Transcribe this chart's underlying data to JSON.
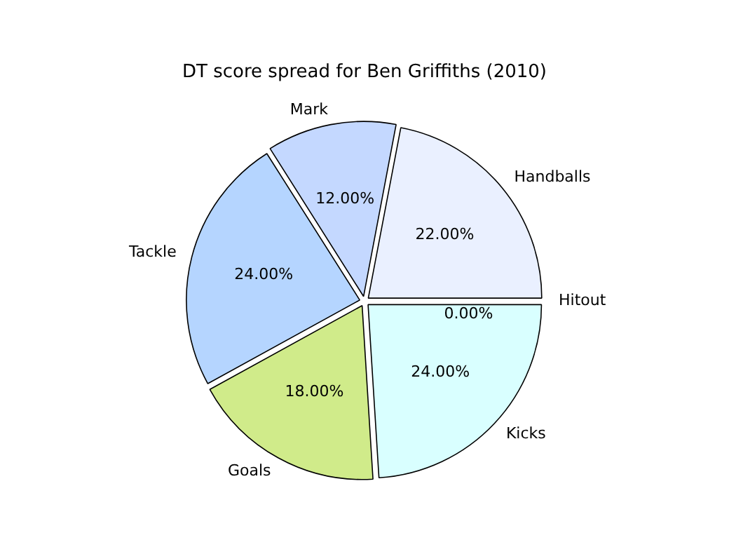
{
  "chart_data": {
    "type": "pie",
    "title": "DT score spread for Ben Griffiths (2010)",
    "categories": [
      "Hitout",
      "Kicks",
      "Goals",
      "Tackle",
      "Mark",
      "Handballs"
    ],
    "values": [
      0,
      24,
      18,
      24,
      12,
      22
    ],
    "value_labels": [
      "0.00%",
      "24.00%",
      "18.00%",
      "24.00%",
      "12.00%",
      "22.00%"
    ],
    "colors": [
      "#ffffff",
      "#d9ffff",
      "#d0eb8a",
      "#b5d5ff",
      "#c4d8ff",
      "#eaf0ff"
    ],
    "legend": false
  }
}
